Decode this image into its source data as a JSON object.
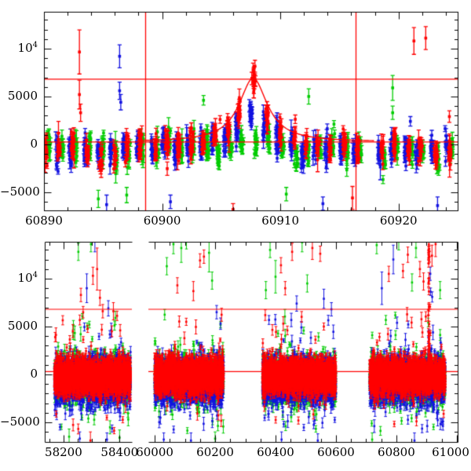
{
  "figure": {
    "background": "#ffffff",
    "axis_color": "#000000"
  },
  "palette": {
    "red": "#ff0000",
    "green": "#00cc00",
    "blue": "#1212e0",
    "model": "#ff0000"
  },
  "chart_data": [
    {
      "id": "top-panel",
      "type": "scatter",
      "x_axis": {
        "range": [
          60890,
          60925
        ],
        "major_ticks": [
          60890,
          60900,
          60910,
          60920
        ],
        "tick_labels": [
          "60890",
          "60900",
          "60910",
          "60920"
        ],
        "minor_step": 2
      },
      "y_axis": {
        "range": [
          -6900,
          13850
        ],
        "major_ticks": [
          10000,
          5000,
          0,
          -5000
        ],
        "tick_labels": [
          "10^4",
          "5000",
          "0",
          "−5000"
        ],
        "minor_step": 1000
      },
      "horizontal_lines": [
        6800,
        250
      ],
      "vertical_lines": [
        60898.6,
        60916.4
      ],
      "model_curve": {
        "baseline": 250,
        "peak": 6900,
        "t0": 60907.7,
        "width_days": 1.45
      },
      "series": [
        {
          "name": "green",
          "color": "green",
          "model_factor": 0.2,
          "night_offset": 0.2
        },
        {
          "name": "blue",
          "color": "blue",
          "model_factor": 0.6,
          "night_offset": -0.25
        },
        {
          "name": "red",
          "color": "red",
          "model_factor": 1.0,
          "night_offset": 0.0
        }
      ],
      "scatter_stats": {
        "night_step": 1.0,
        "points_per_night": 15,
        "night_mean": -650,
        "night_mean_sigma": 480,
        "point_sigma": 700,
        "err_base": 280,
        "err_sigma": 330,
        "gap_nights": [
          60917.0,
          60918.0
        ]
      },
      "outliers": [
        [
          60893.0,
          9650,
          2300,
          "red"
        ],
        [
          60893.0,
          5200,
          1500,
          "red"
        ],
        [
          60893.1,
          3300,
          900,
          "red"
        ],
        [
          60896.4,
          9200,
          1200,
          "blue"
        ],
        [
          60896.4,
          5600,
          900,
          "blue"
        ],
        [
          60896.5,
          4400,
          800,
          "blue"
        ],
        [
          60894.6,
          -5700,
          900,
          "green"
        ],
        [
          60895.3,
          -6300,
          1000,
          "blue"
        ],
        [
          60897.0,
          -5300,
          800,
          "green"
        ],
        [
          60900.7,
          -6000,
          700,
          "blue"
        ],
        [
          60903.5,
          4600,
          500,
          "green"
        ],
        [
          60904.9,
          2600,
          400,
          "red"
        ],
        [
          60906.0,
          -6800,
          600,
          "red"
        ],
        [
          60910.5,
          -5200,
          700,
          "green"
        ],
        [
          60912.4,
          5000,
          800,
          "green"
        ],
        [
          60913.6,
          -6200,
          700,
          "blue"
        ],
        [
          60916.1,
          -5600,
          1200,
          "red"
        ],
        [
          60919.5,
          5900,
          1300,
          "green"
        ],
        [
          60919.5,
          3300,
          700,
          "green"
        ],
        [
          60921.3,
          10800,
          1400,
          "red"
        ],
        [
          60922.3,
          11100,
          1200,
          "red"
        ],
        [
          60921.0,
          2400,
          500,
          "blue"
        ],
        [
          60923.3,
          -6400,
          900,
          "blue"
        ],
        [
          60924.3,
          2900,
          600,
          "red"
        ]
      ]
    },
    {
      "id": "bottom-panel",
      "type": "scatter",
      "broken_axis": true,
      "x_segments": [
        {
          "range": [
            58133,
            58444
          ],
          "major_ticks": [
            58200,
            58400
          ],
          "tick_labels": [
            "58200",
            "58400"
          ],
          "minor_step": 50
        },
        {
          "range": [
            59979,
            61003
          ],
          "major_ticks": [
            60000,
            60200,
            60400,
            60600,
            60800,
            61000
          ],
          "tick_labels": [
            "60000",
            "60200",
            "60400",
            "60600",
            "60800",
            "61000"
          ],
          "minor_step": 50
        }
      ],
      "y_axis": {
        "range": [
          -7050,
          13850
        ],
        "major_ticks": [
          10000,
          5000,
          0,
          -5000
        ],
        "tick_labels": [
          "10^4",
          "5000",
          "0",
          "−5000"
        ],
        "minor_step": 1000
      },
      "horizontal_lines": [
        6800,
        300
      ],
      "seasons": [
        [
          58168,
          58440
        ],
        [
          60000,
          60228
        ],
        [
          60357,
          60600
        ],
        [
          60712,
          60962
        ]
      ],
      "event_spike": {
        "t0": 60908,
        "max": 13900
      },
      "scatter_stats": {
        "band_mean_red": -200,
        "band_sigma_red": 850,
        "band_mean_green": -450,
        "band_sigma_green": 1050,
        "band_mean_blue": -600,
        "band_sigma_blue": 1100,
        "high_spike_rate": 0.085,
        "low_spike_rate": 0.1
      },
      "outliers": [
        [
          58253,
          12800,
          900,
          "green"
        ],
        [
          58262,
          8300,
          700,
          "red"
        ],
        [
          58270,
          6500,
          600,
          "red"
        ],
        [
          58283,
          9000,
          1500,
          "blue"
        ],
        [
          58298,
          13600,
          800,
          "green"
        ],
        [
          58305,
          10300,
          900,
          "red"
        ],
        [
          58312,
          13900,
          1100,
          "blue"
        ],
        [
          58320,
          11000,
          2200,
          "red"
        ],
        [
          58330,
          8000,
          800,
          "red"
        ],
        [
          58340,
          6600,
          700,
          "red"
        ],
        [
          58360,
          6900,
          800,
          "blue"
        ],
        [
          58378,
          6600,
          900,
          "red"
        ],
        [
          58385,
          5900,
          700,
          "green"
        ],
        [
          58220,
          -6500,
          800,
          "green"
        ],
        [
          58258,
          -6700,
          700,
          "blue"
        ],
        [
          58296,
          -6900,
          900,
          "red"
        ],
        [
          58355,
          -6800,
          700,
          "blue"
        ],
        [
          58400,
          -6600,
          800,
          "green"
        ],
        [
          60040,
          11300,
          900,
          "green"
        ],
        [
          60062,
          13600,
          1000,
          "green"
        ],
        [
          60075,
          9300,
          800,
          "red"
        ],
        [
          60088,
          13200,
          1500,
          "green"
        ],
        [
          60105,
          14000,
          900,
          "green"
        ],
        [
          60128,
          8700,
          1000,
          "red"
        ],
        [
          60150,
          11900,
          700,
          "red"
        ],
        [
          60163,
          12300,
          700,
          "red"
        ],
        [
          60180,
          12700,
          2000,
          "green"
        ],
        [
          60190,
          9800,
          900,
          "green"
        ],
        [
          60205,
          6500,
          700,
          "blue"
        ],
        [
          60218,
          5300,
          600,
          "blue"
        ],
        [
          60030,
          -6800,
          700,
          "blue"
        ],
        [
          60120,
          -6900,
          800,
          "blue"
        ],
        [
          60200,
          -6700,
          700,
          "green"
        ],
        [
          60368,
          8800,
          900,
          "green"
        ],
        [
          60382,
          13000,
          800,
          "green"
        ],
        [
          60400,
          10200,
          1700,
          "green"
        ],
        [
          60418,
          11400,
          800,
          "red"
        ],
        [
          60432,
          9000,
          700,
          "red"
        ],
        [
          60455,
          12800,
          900,
          "red"
        ],
        [
          60470,
          7400,
          800,
          "blue"
        ],
        [
          60488,
          13800,
          1000,
          "green"
        ],
        [
          60505,
          9500,
          900,
          "green"
        ],
        [
          60522,
          13200,
          1200,
          "red"
        ],
        [
          60548,
          12600,
          800,
          "red"
        ],
        [
          60560,
          7900,
          1000,
          "blue"
        ],
        [
          60585,
          6800,
          700,
          "blue"
        ],
        [
          60420,
          -6800,
          800,
          "blue"
        ],
        [
          60540,
          -6900,
          700,
          "blue"
        ],
        [
          60735,
          13500,
          900,
          "green"
        ],
        [
          60752,
          9000,
          1700,
          "blue"
        ],
        [
          60775,
          10500,
          800,
          "red"
        ],
        [
          60790,
          12000,
          1500,
          "blue"
        ],
        [
          60808,
          13900,
          900,
          "green"
        ],
        [
          60822,
          10800,
          700,
          "red"
        ],
        [
          60838,
          12500,
          800,
          "red"
        ],
        [
          60852,
          9600,
          900,
          "green"
        ],
        [
          60865,
          13200,
          1000,
          "green"
        ],
        [
          60878,
          11000,
          800,
          "red"
        ],
        [
          60890,
          9700,
          900,
          "red"
        ],
        [
          60918,
          12400,
          1100,
          "red"
        ],
        [
          60930,
          13600,
          1300,
          "red"
        ],
        [
          60945,
          8800,
          900,
          "green"
        ],
        [
          60720,
          -6800,
          700,
          "green"
        ],
        [
          60860,
          -6900,
          800,
          "blue"
        ]
      ]
    }
  ]
}
